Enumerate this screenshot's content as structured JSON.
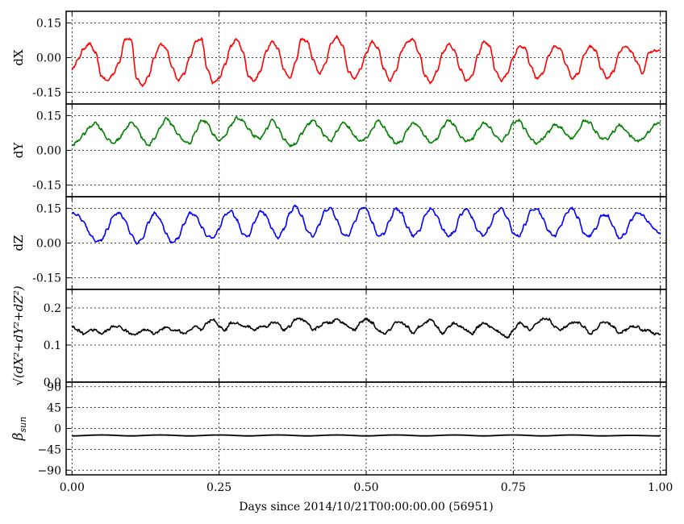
{
  "chart_data": [
    {
      "type": "line",
      "ylabel": "dX",
      "ylim": [
        -0.2,
        0.2
      ],
      "yticks": [
        "0.15",
        "0.00",
        "-0.15"
      ],
      "ytick_values": [
        0.15,
        0.0,
        -0.15
      ],
      "xlim": [
        -0.01,
        1.01
      ],
      "color": "#ff0000",
      "series": [
        {
          "x": [
            0.0,
            0.01,
            0.02,
            0.03,
            0.04,
            0.05,
            0.06,
            0.07,
            0.08,
            0.09,
            0.1,
            0.11,
            0.12,
            0.13,
            0.14,
            0.15,
            0.16,
            0.17,
            0.18,
            0.19,
            0.2,
            0.21,
            0.22,
            0.23,
            0.24,
            0.25,
            0.26,
            0.27,
            0.28,
            0.29,
            0.3,
            0.31,
            0.32,
            0.33,
            0.34,
            0.35,
            0.36,
            0.37,
            0.38,
            0.39,
            0.4,
            0.41,
            0.42,
            0.43,
            0.44,
            0.45,
            0.46,
            0.47,
            0.48,
            0.49,
            0.5,
            0.51,
            0.52,
            0.53,
            0.54,
            0.55,
            0.56,
            0.57,
            0.58,
            0.59,
            0.6,
            0.61,
            0.62,
            0.63,
            0.64,
            0.65,
            0.66,
            0.67,
            0.68,
            0.69,
            0.7,
            0.71,
            0.72,
            0.73,
            0.74,
            0.75,
            0.76,
            0.77,
            0.78,
            0.79,
            0.8,
            0.81,
            0.82,
            0.83,
            0.84,
            0.85,
            0.86,
            0.87,
            0.88,
            0.89,
            0.9,
            0.91,
            0.92,
            0.93,
            0.94,
            0.95,
            0.96,
            0.97,
            0.98,
            0.99,
            1.0
          ],
          "values": [
            -0.05,
            -0.01,
            0.04,
            0.06,
            0.02,
            -0.08,
            -0.1,
            -0.07,
            -0.02,
            0.08,
            0.08,
            -0.09,
            -0.12,
            -0.08,
            0.0,
            0.06,
            0.04,
            -0.04,
            -0.1,
            -0.07,
            0.0,
            0.07,
            0.08,
            -0.05,
            -0.11,
            -0.09,
            -0.03,
            0.05,
            0.08,
            0.03,
            -0.08,
            -0.1,
            -0.06,
            0.03,
            0.07,
            0.04,
            -0.05,
            -0.09,
            -0.02,
            0.08,
            0.07,
            -0.01,
            -0.07,
            -0.03,
            0.06,
            0.09,
            0.05,
            -0.06,
            -0.09,
            -0.05,
            0.02,
            0.07,
            0.04,
            -0.05,
            -0.1,
            -0.06,
            0.03,
            0.07,
            0.08,
            0.02,
            -0.08,
            -0.11,
            -0.06,
            0.02,
            0.06,
            0.03,
            -0.05,
            -0.1,
            -0.08,
            0.01,
            0.07,
            0.05,
            -0.06,
            -0.1,
            -0.07,
            0.0,
            0.05,
            0.04,
            -0.04,
            -0.09,
            -0.07,
            0.01,
            0.05,
            0.04,
            -0.03,
            -0.09,
            -0.07,
            0.01,
            0.05,
            0.03,
            -0.05,
            -0.09,
            -0.06,
            0.02,
            0.05,
            0.03,
            -0.02,
            -0.07,
            0.02,
            0.03,
            0.03
          ]
        }
      ]
    },
    {
      "type": "line",
      "ylabel": "dY",
      "ylim": [
        -0.2,
        0.2
      ],
      "yticks": [
        "0.15",
        "0.00",
        "-0.15"
      ],
      "ytick_values": [
        0.15,
        0.0,
        -0.15
      ],
      "xlim": [
        -0.01,
        1.01
      ],
      "color": "#008000",
      "series": [
        {
          "x": [
            0.0,
            0.01,
            0.02,
            0.03,
            0.04,
            0.05,
            0.06,
            0.07,
            0.08,
            0.09,
            0.1,
            0.11,
            0.12,
            0.13,
            0.14,
            0.15,
            0.16,
            0.17,
            0.18,
            0.19,
            0.2,
            0.21,
            0.22,
            0.23,
            0.24,
            0.25,
            0.26,
            0.27,
            0.28,
            0.29,
            0.3,
            0.31,
            0.32,
            0.33,
            0.34,
            0.35,
            0.36,
            0.37,
            0.38,
            0.39,
            0.4,
            0.41,
            0.42,
            0.43,
            0.44,
            0.45,
            0.46,
            0.47,
            0.48,
            0.49,
            0.5,
            0.51,
            0.52,
            0.53,
            0.54,
            0.55,
            0.56,
            0.57,
            0.58,
            0.59,
            0.6,
            0.61,
            0.62,
            0.63,
            0.64,
            0.65,
            0.66,
            0.67,
            0.68,
            0.69,
            0.7,
            0.71,
            0.72,
            0.73,
            0.74,
            0.75,
            0.76,
            0.77,
            0.78,
            0.79,
            0.8,
            0.81,
            0.82,
            0.83,
            0.84,
            0.85,
            0.86,
            0.87,
            0.88,
            0.89,
            0.9,
            0.91,
            0.92,
            0.93,
            0.94,
            0.95,
            0.96,
            0.97,
            0.98,
            0.99,
            1.0
          ],
          "values": [
            0.02,
            0.04,
            0.07,
            0.1,
            0.12,
            0.09,
            0.05,
            0.03,
            0.05,
            0.09,
            0.12,
            0.1,
            0.05,
            0.02,
            0.05,
            0.1,
            0.14,
            0.11,
            0.07,
            0.04,
            0.03,
            0.08,
            0.13,
            0.12,
            0.07,
            0.04,
            0.06,
            0.11,
            0.14,
            0.13,
            0.09,
            0.06,
            0.05,
            0.09,
            0.13,
            0.1,
            0.05,
            0.02,
            0.03,
            0.07,
            0.11,
            0.13,
            0.1,
            0.06,
            0.04,
            0.08,
            0.12,
            0.1,
            0.06,
            0.04,
            0.05,
            0.09,
            0.13,
            0.1,
            0.06,
            0.03,
            0.04,
            0.09,
            0.12,
            0.1,
            0.06,
            0.03,
            0.05,
            0.1,
            0.13,
            0.11,
            0.06,
            0.04,
            0.05,
            0.09,
            0.12,
            0.1,
            0.06,
            0.04,
            0.07,
            0.12,
            0.13,
            0.09,
            0.05,
            0.03,
            0.05,
            0.08,
            0.11,
            0.1,
            0.07,
            0.05,
            0.08,
            0.13,
            0.12,
            0.08,
            0.05,
            0.05,
            0.08,
            0.11,
            0.09,
            0.06,
            0.04,
            0.05,
            0.08,
            0.11,
            0.12
          ]
        }
      ]
    },
    {
      "type": "line",
      "ylabel": "dZ",
      "ylim": [
        -0.2,
        0.2
      ],
      "yticks": [
        "0.15",
        "0.00",
        "-0.15"
      ],
      "ytick_values": [
        0.15,
        0.0,
        -0.15
      ],
      "xlim": [
        -0.01,
        1.01
      ],
      "color": "#0000ff",
      "series": [
        {
          "x": [
            0.0,
            0.01,
            0.02,
            0.03,
            0.04,
            0.05,
            0.06,
            0.07,
            0.08,
            0.09,
            0.1,
            0.11,
            0.12,
            0.13,
            0.14,
            0.15,
            0.16,
            0.17,
            0.18,
            0.19,
            0.2,
            0.21,
            0.22,
            0.23,
            0.24,
            0.25,
            0.26,
            0.27,
            0.28,
            0.29,
            0.3,
            0.31,
            0.32,
            0.33,
            0.34,
            0.35,
            0.36,
            0.37,
            0.38,
            0.39,
            0.4,
            0.41,
            0.42,
            0.43,
            0.44,
            0.45,
            0.46,
            0.47,
            0.48,
            0.49,
            0.5,
            0.51,
            0.52,
            0.53,
            0.54,
            0.55,
            0.56,
            0.57,
            0.58,
            0.59,
            0.6,
            0.61,
            0.62,
            0.63,
            0.64,
            0.65,
            0.66,
            0.67,
            0.68,
            0.69,
            0.7,
            0.71,
            0.72,
            0.73,
            0.74,
            0.75,
            0.76,
            0.77,
            0.78,
            0.79,
            0.8,
            0.81,
            0.82,
            0.83,
            0.84,
            0.85,
            0.86,
            0.87,
            0.88,
            0.89,
            0.9,
            0.91,
            0.92,
            0.93,
            0.94,
            0.95,
            0.96,
            0.97,
            0.98,
            0.99,
            1.0
          ],
          "values": [
            0.13,
            0.12,
            0.09,
            0.04,
            0.01,
            0.01,
            0.06,
            0.12,
            0.13,
            0.1,
            0.04,
            0.0,
            0.02,
            0.09,
            0.13,
            0.1,
            0.04,
            0.0,
            0.02,
            0.08,
            0.13,
            0.12,
            0.07,
            0.03,
            0.02,
            0.06,
            0.12,
            0.14,
            0.1,
            0.04,
            0.03,
            0.09,
            0.14,
            0.12,
            0.06,
            0.02,
            0.06,
            0.13,
            0.16,
            0.12,
            0.05,
            0.03,
            0.08,
            0.14,
            0.15,
            0.1,
            0.04,
            0.03,
            0.09,
            0.15,
            0.15,
            0.09,
            0.03,
            0.04,
            0.1,
            0.15,
            0.13,
            0.07,
            0.03,
            0.05,
            0.12,
            0.15,
            0.12,
            0.06,
            0.03,
            0.05,
            0.12,
            0.15,
            0.11,
            0.05,
            0.03,
            0.07,
            0.13,
            0.15,
            0.11,
            0.04,
            0.03,
            0.08,
            0.14,
            0.15,
            0.11,
            0.05,
            0.03,
            0.07,
            0.13,
            0.15,
            0.11,
            0.04,
            0.03,
            0.06,
            0.12,
            0.12,
            0.07,
            0.02,
            0.04,
            0.1,
            0.13,
            0.12,
            0.09,
            0.06,
            0.04
          ]
        }
      ]
    },
    {
      "type": "line",
      "ylabel": "√(dX²+dY²+dZ²)",
      "ylim": [
        0.0,
        0.25
      ],
      "yticks": [
        "0.2",
        "0.1",
        "0.0"
      ],
      "ytick_values": [
        0.2,
        0.1,
        0.0
      ],
      "xlim": [
        -0.01,
        1.01
      ],
      "color": "#000000",
      "series": [
        {
          "x": [
            0.0,
            0.01,
            0.02,
            0.03,
            0.04,
            0.05,
            0.06,
            0.07,
            0.08,
            0.09,
            0.1,
            0.11,
            0.12,
            0.13,
            0.14,
            0.15,
            0.16,
            0.17,
            0.18,
            0.19,
            0.2,
            0.21,
            0.22,
            0.23,
            0.24,
            0.25,
            0.26,
            0.27,
            0.28,
            0.29,
            0.3,
            0.31,
            0.32,
            0.33,
            0.34,
            0.35,
            0.36,
            0.37,
            0.38,
            0.39,
            0.4,
            0.41,
            0.42,
            0.43,
            0.44,
            0.45,
            0.46,
            0.47,
            0.48,
            0.49,
            0.5,
            0.51,
            0.52,
            0.53,
            0.54,
            0.55,
            0.56,
            0.57,
            0.58,
            0.59,
            0.6,
            0.61,
            0.62,
            0.63,
            0.64,
            0.65,
            0.66,
            0.67,
            0.68,
            0.69,
            0.7,
            0.71,
            0.72,
            0.73,
            0.74,
            0.75,
            0.76,
            0.77,
            0.78,
            0.79,
            0.8,
            0.81,
            0.82,
            0.83,
            0.84,
            0.85,
            0.86,
            0.87,
            0.88,
            0.89,
            0.9,
            0.91,
            0.92,
            0.93,
            0.94,
            0.95,
            0.96,
            0.97,
            0.98,
            0.99,
            1.0
          ],
          "values": [
            0.15,
            0.14,
            0.13,
            0.14,
            0.14,
            0.13,
            0.14,
            0.15,
            0.15,
            0.14,
            0.13,
            0.13,
            0.14,
            0.14,
            0.13,
            0.14,
            0.15,
            0.14,
            0.14,
            0.13,
            0.14,
            0.15,
            0.14,
            0.16,
            0.17,
            0.15,
            0.14,
            0.16,
            0.16,
            0.15,
            0.15,
            0.14,
            0.15,
            0.15,
            0.16,
            0.16,
            0.14,
            0.15,
            0.17,
            0.17,
            0.16,
            0.14,
            0.15,
            0.16,
            0.16,
            0.17,
            0.16,
            0.15,
            0.14,
            0.16,
            0.17,
            0.16,
            0.14,
            0.13,
            0.14,
            0.16,
            0.16,
            0.15,
            0.13,
            0.15,
            0.16,
            0.17,
            0.15,
            0.13,
            0.15,
            0.16,
            0.15,
            0.14,
            0.13,
            0.15,
            0.16,
            0.15,
            0.14,
            0.13,
            0.12,
            0.14,
            0.16,
            0.15,
            0.14,
            0.16,
            0.17,
            0.17,
            0.15,
            0.14,
            0.15,
            0.16,
            0.16,
            0.15,
            0.13,
            0.14,
            0.16,
            0.16,
            0.15,
            0.13,
            0.14,
            0.15,
            0.15,
            0.14,
            0.14,
            0.13,
            0.13
          ]
        }
      ]
    },
    {
      "type": "line",
      "ylabel": "β_sun",
      "ylim": [
        -100,
        100
      ],
      "yticks": [
        "90",
        "45",
        "0",
        "−45",
        "−90"
      ],
      "ytick_values": [
        90,
        45,
        0,
        -45,
        -90
      ],
      "xlim": [
        -0.01,
        1.01
      ],
      "color": "#000000",
      "series": [
        {
          "x": [
            0.0,
            0.05,
            0.1,
            0.15,
            0.2,
            0.25,
            0.3,
            0.35,
            0.4,
            0.45,
            0.5,
            0.55,
            0.6,
            0.65,
            0.7,
            0.75,
            0.8,
            0.85,
            0.9,
            0.95,
            1.0
          ],
          "values": [
            -16,
            -14,
            -16,
            -14,
            -16,
            -14,
            -16,
            -14,
            -16,
            -14,
            -16,
            -14,
            -16,
            -14,
            -16,
            -14,
            -16,
            -14,
            -16,
            -15,
            -16
          ]
        }
      ]
    }
  ],
  "xaxis": {
    "ticks": [
      "0.00",
      "0.25",
      "0.50",
      "0.75",
      "1.00"
    ],
    "tick_values": [
      0.0,
      0.25,
      0.5,
      0.75,
      1.0
    ],
    "xlabel": "Days since 2014/10/21T00:00:00.00 (56951)"
  }
}
